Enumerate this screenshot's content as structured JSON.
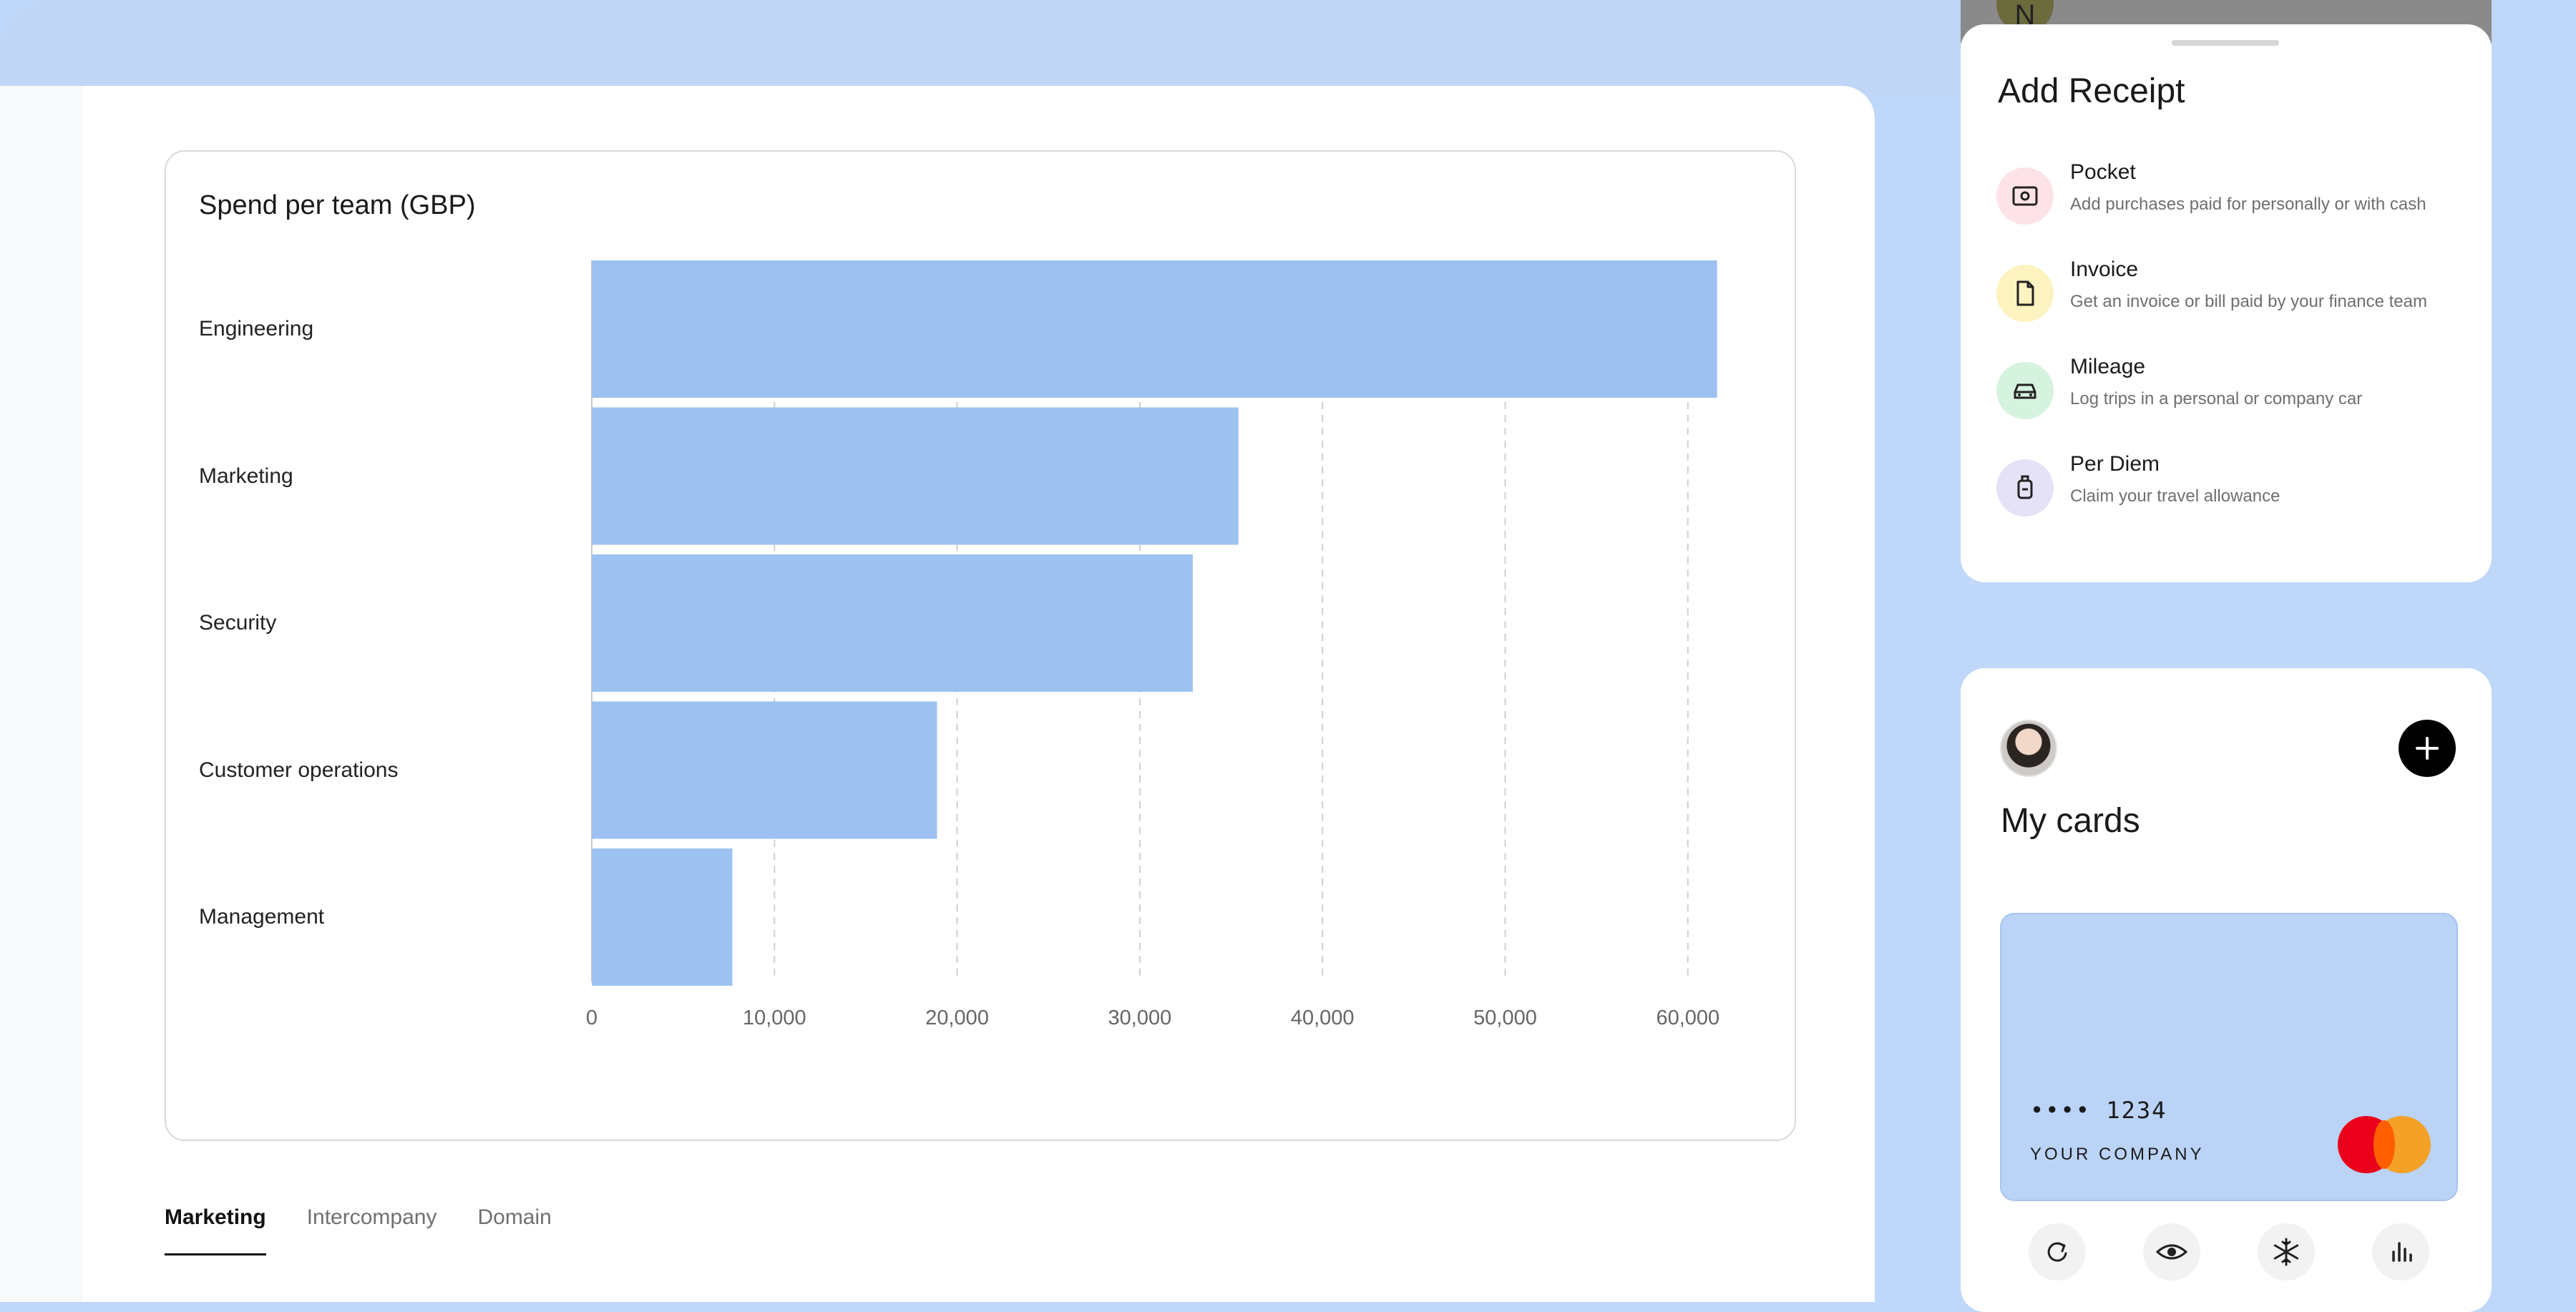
{
  "chart": {
    "title": "Spend per team (GBP)"
  },
  "chart_data": {
    "type": "bar",
    "orientation": "horizontal",
    "title": "Spend per team (GBP)",
    "categories": [
      "Engineering",
      "Marketing",
      "Security",
      "Customer operations",
      "Management"
    ],
    "values": [
      61600,
      35400,
      32900,
      18900,
      7700
    ],
    "xlim": [
      0,
      60000
    ],
    "ticks": [
      "0",
      "10,000",
      "20,000",
      "30,000",
      "40,000",
      "50,000",
      "60,000"
    ],
    "grid": "vertical dashed",
    "bar_color": "#9dc2f2"
  },
  "tabs": [
    {
      "label": "Marketing",
      "active": true
    },
    {
      "label": "Intercompany",
      "active": false
    },
    {
      "label": "Domain",
      "active": false
    }
  ],
  "peek": {
    "avatar_letter": "N"
  },
  "add_receipt": {
    "title": "Add Receipt",
    "options": [
      {
        "title": "Pocket",
        "description": "Add purchases paid for personally or with cash",
        "icon": "cash-icon",
        "color": "#fde3e8"
      },
      {
        "title": "Invoice",
        "description": "Get an invoice or bill paid by your finance team",
        "icon": "document-icon",
        "color": "#fdf3c0"
      },
      {
        "title": "Mileage",
        "description": "Log trips in a personal or company car",
        "icon": "car-icon",
        "color": "#d6f3e0"
      },
      {
        "title": "Per Diem",
        "description": "Claim your travel allowance",
        "icon": "luggage-icon",
        "color": "#e5e2f7"
      }
    ]
  },
  "my_cards": {
    "title": "My cards",
    "card_number": "•••• 1234",
    "card_company": "YOUR COMPANY",
    "card_color": "#bad3f6",
    "actions": [
      "refresh-icon",
      "eye-icon",
      "snowflake-icon",
      "bar-chart-icon"
    ]
  }
}
